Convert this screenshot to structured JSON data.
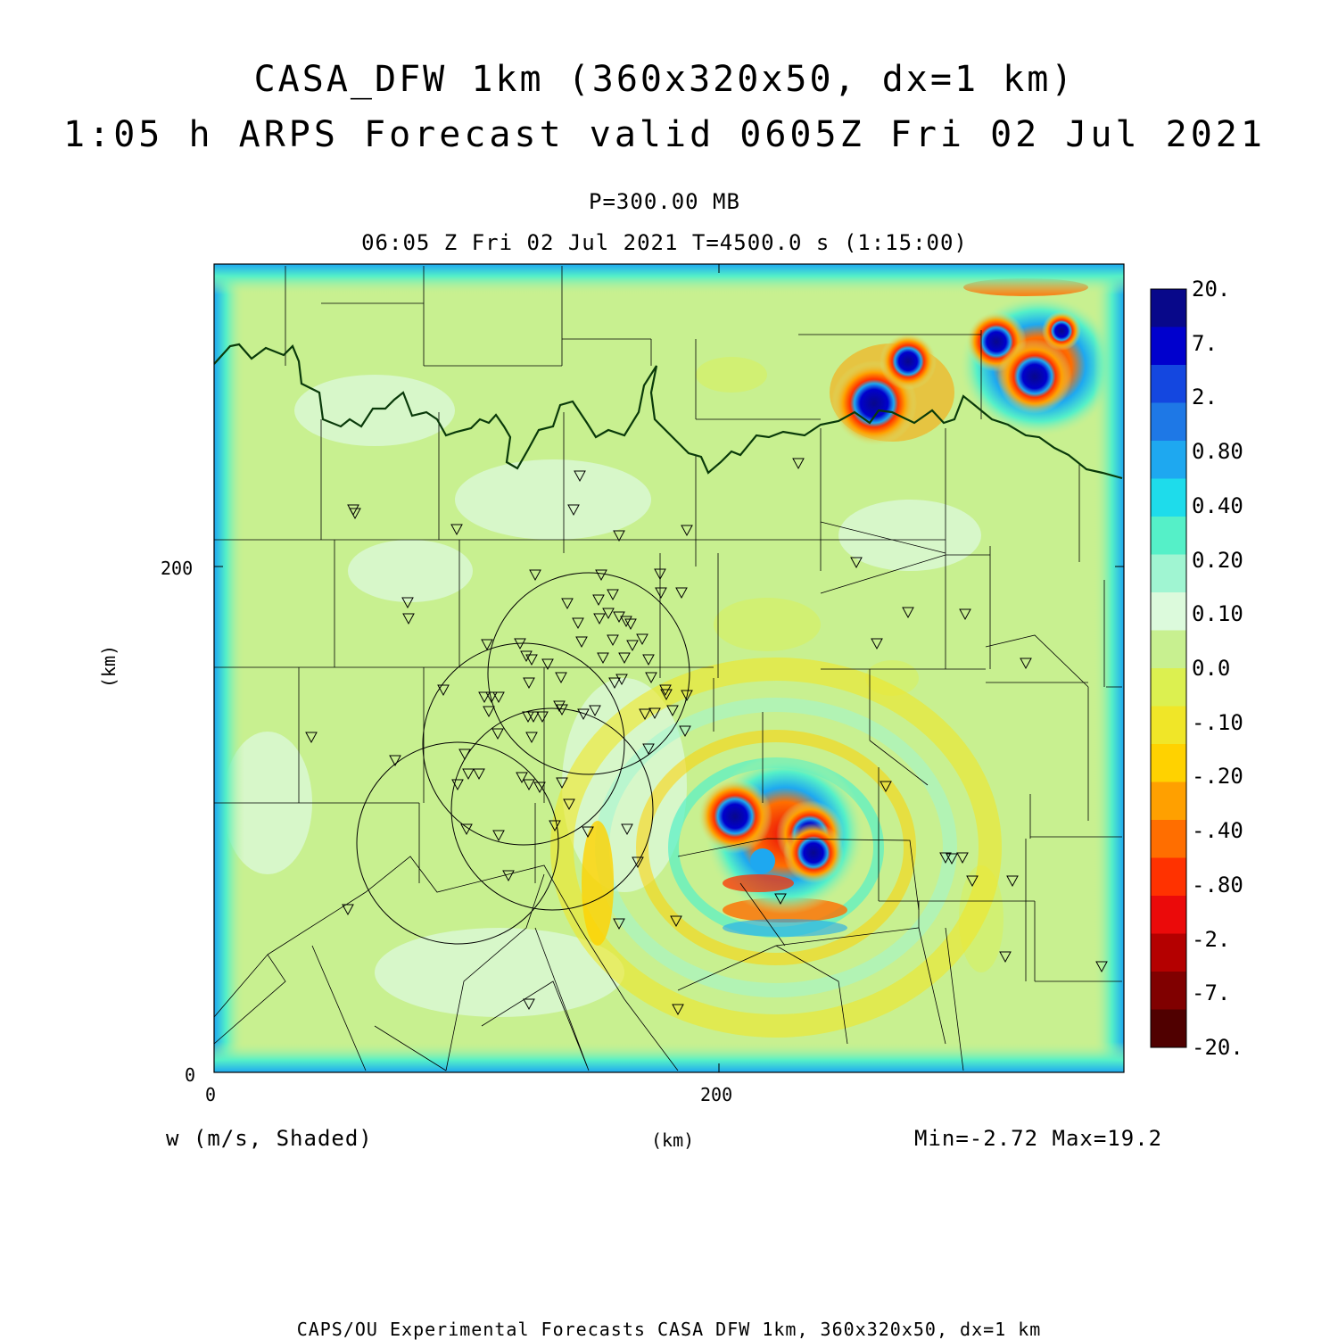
{
  "title": {
    "line1": "CASA_DFW 1km (360x320x50, dx=1 km)",
    "line2": "1:05 h ARPS Forecast valid 0605Z Fri 02 Jul 2021"
  },
  "subtitle": "P=300.00 MB",
  "timeline": "06:05 Z Fri 02 Jul 2021   T=4500.0 s (1:15:00)",
  "variable_label": "w (m/s, Shaded)",
  "minmax": "Min=-2.72 Max=19.2",
  "footer": "CAPS/OU Experimental Forecasts  CASA DFW 1km, 360x320x50, dx=1 km",
  "axes": {
    "x_label": "(km)",
    "y_label": "(km)",
    "x_ticks": [
      {
        "value": 0,
        "label": "0"
      },
      {
        "value": 200,
        "label": "200"
      }
    ],
    "y_ticks": [
      {
        "value": 0,
        "label": "0"
      },
      {
        "value": 200,
        "label": "200"
      }
    ],
    "x_range": [
      0,
      360
    ],
    "y_range": [
      0,
      320
    ]
  },
  "colorbar": {
    "labels": [
      "20.",
      "7.",
      "2.",
      "0.80",
      "0.40",
      "0.20",
      "0.10",
      "0.0",
      "-.10",
      "-.20",
      "-.40",
      "-.80",
      "-2.",
      "-7.",
      "-20."
    ],
    "colors": [
      "#08088a",
      "#0000cd",
      "#1447e0",
      "#1e78e6",
      "#1ea8f0",
      "#1edceb",
      "#55f0c8",
      "#a0f5d2",
      "#dcfadc",
      "#c8f090",
      "#dcf050",
      "#f0e628",
      "#ffd200",
      "#ffa000",
      "#ff6e00",
      "#ff3200",
      "#eb0a0a",
      "#b40000",
      "#800000",
      "#500000"
    ]
  },
  "chart_data": {
    "type": "heatmap",
    "field": "vertical velocity w at 300 mb",
    "units": "m/s",
    "min": -2.72,
    "max": 19.2,
    "updraft_cells": [
      {
        "x": 207,
        "y": 99,
        "w_approx": 19
      },
      {
        "x": 234,
        "y": 95,
        "w_approx": 15
      },
      {
        "x": 237,
        "y": 87,
        "w_approx": 14
      },
      {
        "x": 262,
        "y": 264,
        "w_approx": 19
      },
      {
        "x": 274,
        "y": 280,
        "w_approx": 12
      },
      {
        "x": 309,
        "y": 289,
        "w_approx": 17
      },
      {
        "x": 325,
        "y": 273,
        "w_approx": 19
      },
      {
        "x": 334,
        "y": 292,
        "w_approx": 10
      }
    ],
    "radar_circles_km": [
      {
        "x": 148,
        "y": 158,
        "r": 40
      },
      {
        "x": 125,
        "y": 130,
        "r": 40
      },
      {
        "x": 136,
        "y": 104,
        "r": 40
      },
      {
        "x": 96,
        "y": 92,
        "r": 40
      }
    ],
    "station_count_approx": 120
  }
}
